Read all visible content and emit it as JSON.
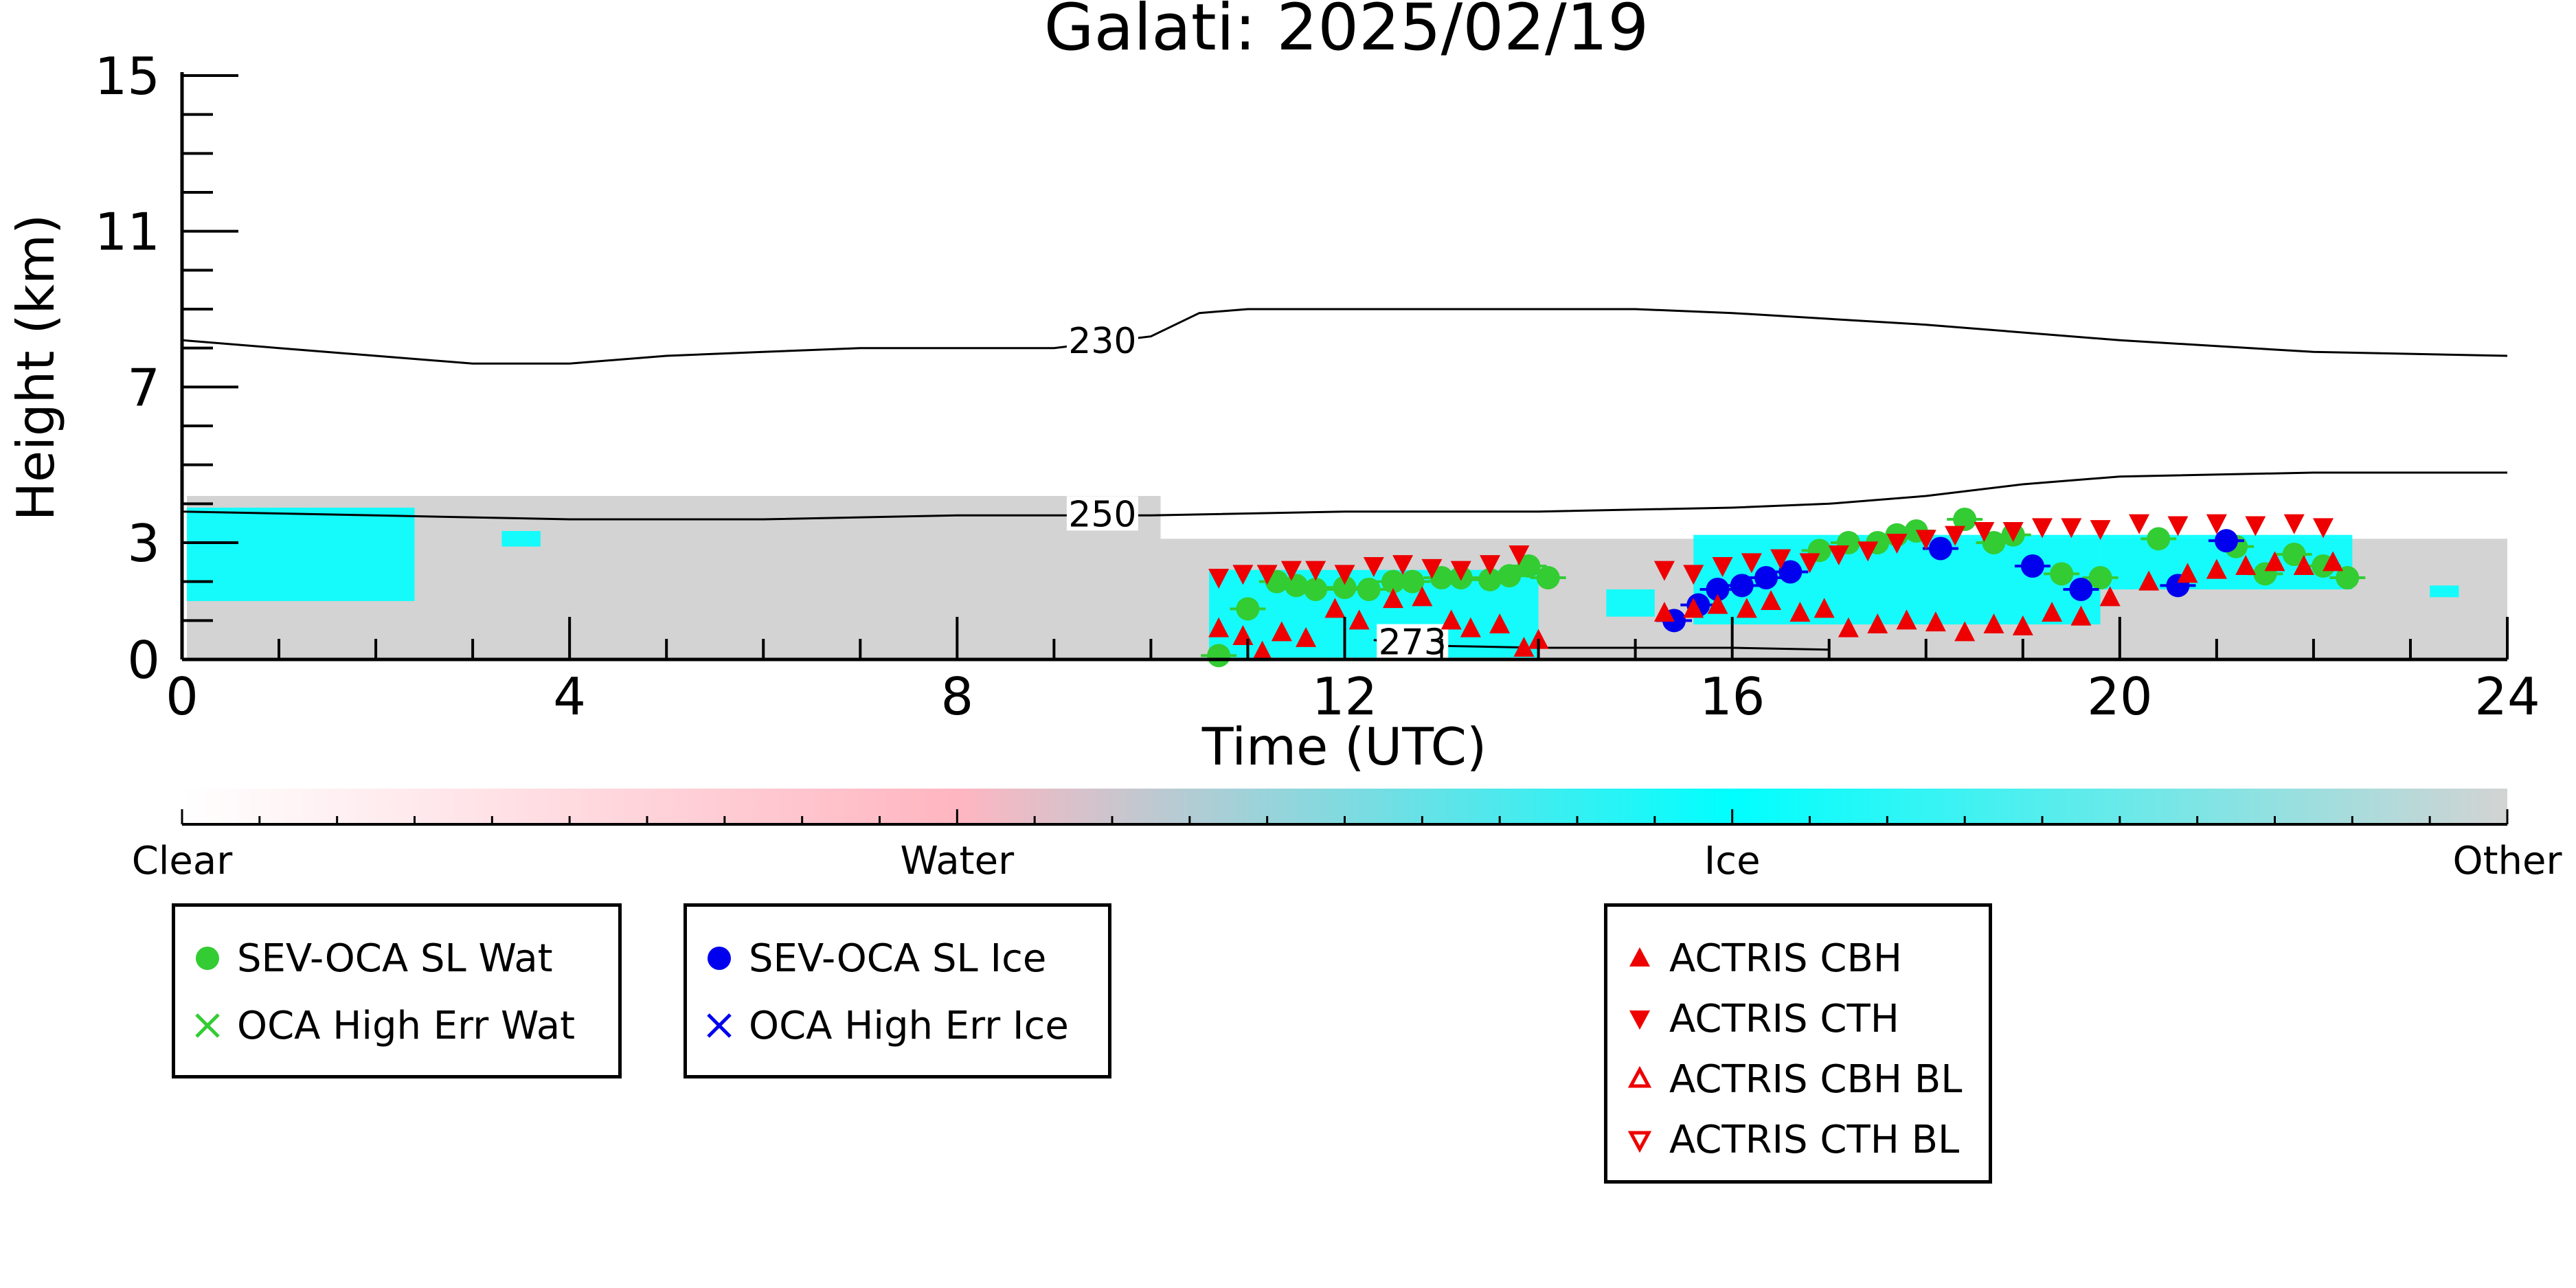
{
  "chart_data": {
    "type": "scatter",
    "title": "Galati: 2025/02/19",
    "xlabel": "Time (UTC)",
    "ylabel": "Height (km)",
    "xlim": [
      0,
      24
    ],
    "ylim": [
      0,
      15
    ],
    "x_ticks": [
      "0",
      "4",
      "8",
      "12",
      "16",
      "20",
      "24"
    ],
    "y_ticks": [
      "0",
      "3",
      "7",
      "11",
      "15"
    ],
    "grid": false,
    "colors": {
      "clear": "#ffffff",
      "water": "#ffb6c1",
      "ice": "#00ffff",
      "other": "#d3d3d3",
      "sev_wat": "#33cc33",
      "sev_ice": "#0000ee",
      "actris": "#ee0000"
    },
    "colorbar": {
      "labels": [
        "Clear",
        "Water",
        "Ice",
        "Other"
      ]
    },
    "background_cloud": {
      "other_regions": [
        {
          "t": [
            0.05,
            10.1
          ],
          "base_km": 0.0,
          "top_km": 4.2
        },
        {
          "t": [
            10.1,
            24.0
          ],
          "base_km": 0.0,
          "top_km": 3.1
        }
      ],
      "ice_regions": [
        {
          "t": [
            0.05,
            2.4
          ],
          "base_km": 1.5,
          "top_km": 3.9
        },
        {
          "t": [
            3.3,
            3.7
          ],
          "base_km": 2.9,
          "top_km": 3.3
        },
        {
          "t": [
            10.6,
            14.0
          ],
          "base_km": 0.05,
          "top_km": 2.3
        },
        {
          "t": [
            14.7,
            15.2
          ],
          "base_km": 1.1,
          "top_km": 1.8
        },
        {
          "t": [
            15.6,
            19.8
          ],
          "base_km": 0.9,
          "top_km": 3.2
        },
        {
          "t": [
            19.8,
            22.4
          ],
          "base_km": 1.8,
          "top_km": 3.2
        },
        {
          "t": [
            23.2,
            23.5
          ],
          "base_km": 1.6,
          "top_km": 1.9
        }
      ]
    },
    "contours": [
      {
        "label": "230",
        "points": [
          [
            0,
            8.2
          ],
          [
            1,
            8.0
          ],
          [
            2,
            7.8
          ],
          [
            3,
            7.6
          ],
          [
            4,
            7.6
          ],
          [
            5,
            7.8
          ],
          [
            6,
            7.9
          ],
          [
            7,
            8.0
          ],
          [
            8,
            8.0
          ],
          [
            9,
            8.0
          ],
          [
            10,
            8.3
          ],
          [
            10.5,
            8.9
          ],
          [
            11,
            9.0
          ],
          [
            13,
            9.0
          ],
          [
            15,
            9.0
          ],
          [
            16,
            8.9
          ],
          [
            18,
            8.6
          ],
          [
            20,
            8.2
          ],
          [
            22,
            7.9
          ],
          [
            24,
            7.8
          ]
        ],
        "label_x": 9.5
      },
      {
        "label": "250",
        "points": [
          [
            0,
            3.8
          ],
          [
            2,
            3.7
          ],
          [
            4,
            3.6
          ],
          [
            6,
            3.6
          ],
          [
            8,
            3.7
          ],
          [
            10,
            3.7
          ],
          [
            12,
            3.8
          ],
          [
            14,
            3.8
          ],
          [
            16,
            3.9
          ],
          [
            17,
            4.0
          ],
          [
            18,
            4.2
          ],
          [
            19,
            4.5
          ],
          [
            20,
            4.7
          ],
          [
            22,
            4.8
          ],
          [
            24,
            4.8
          ]
        ],
        "label_x": 9.5
      },
      {
        "label": "273",
        "points": [
          [
            12.3,
            0.5
          ],
          [
            13,
            0.35
          ],
          [
            14,
            0.3
          ],
          [
            15,
            0.3
          ],
          [
            16,
            0.3
          ],
          [
            17,
            0.25
          ]
        ],
        "label_x": 12.7
      }
    ],
    "series": [
      {
        "name": "SEV-OCA SL Wat",
        "marker": "circle",
        "points": [
          [
            10.7,
            0.1
          ],
          [
            11.0,
            1.3
          ],
          [
            11.3,
            2.0
          ],
          [
            11.5,
            1.9
          ],
          [
            11.7,
            1.8
          ],
          [
            12.0,
            1.85
          ],
          [
            12.25,
            1.8
          ],
          [
            12.5,
            2.0
          ],
          [
            12.7,
            2.0
          ],
          [
            13.0,
            2.1
          ],
          [
            13.2,
            2.1
          ],
          [
            13.5,
            2.05
          ],
          [
            13.7,
            2.15
          ],
          [
            13.9,
            2.4
          ],
          [
            14.1,
            2.1
          ],
          [
            16.9,
            2.8
          ],
          [
            17.2,
            3.0
          ],
          [
            17.5,
            3.0
          ],
          [
            17.7,
            3.2
          ],
          [
            17.9,
            3.3
          ],
          [
            18.4,
            3.6
          ],
          [
            18.7,
            3.0
          ],
          [
            18.9,
            3.2
          ],
          [
            19.4,
            2.2
          ],
          [
            19.8,
            2.1
          ],
          [
            20.4,
            3.1
          ],
          [
            21.2,
            2.9
          ],
          [
            21.5,
            2.2
          ],
          [
            21.8,
            2.7
          ],
          [
            22.1,
            2.4
          ],
          [
            22.35,
            2.1
          ]
        ]
      },
      {
        "name": "OCA High Err Wat",
        "marker": "x",
        "points": []
      },
      {
        "name": "SEV-OCA SL Ice",
        "marker": "circle",
        "points": [
          [
            15.4,
            1.0
          ],
          [
            15.65,
            1.4
          ],
          [
            15.85,
            1.8
          ],
          [
            16.1,
            1.9
          ],
          [
            16.35,
            2.1
          ],
          [
            16.6,
            2.25
          ],
          [
            18.15,
            2.85
          ],
          [
            19.1,
            2.4
          ],
          [
            19.6,
            1.8
          ],
          [
            20.6,
            1.9
          ],
          [
            21.1,
            3.05
          ]
        ]
      },
      {
        "name": "OCA High Err Ice",
        "marker": "x",
        "points": []
      },
      {
        "name": "ACTRIS CBH",
        "marker": "triangle-up",
        "points": [
          [
            10.7,
            0.8
          ],
          [
            10.95,
            0.6
          ],
          [
            11.15,
            0.2
          ],
          [
            11.35,
            0.7
          ],
          [
            11.6,
            0.55
          ],
          [
            11.9,
            1.3
          ],
          [
            12.15,
            1.0
          ],
          [
            12.5,
            1.55
          ],
          [
            12.8,
            1.6
          ],
          [
            13.1,
            1.0
          ],
          [
            13.3,
            0.8
          ],
          [
            13.6,
            0.9
          ],
          [
            13.85,
            0.3
          ],
          [
            14.0,
            0.5
          ],
          [
            15.3,
            1.2
          ],
          [
            15.6,
            1.3
          ],
          [
            15.85,
            1.4
          ],
          [
            16.15,
            1.3
          ],
          [
            16.4,
            1.5
          ],
          [
            16.7,
            1.2
          ],
          [
            16.95,
            1.3
          ],
          [
            17.2,
            0.8
          ],
          [
            17.5,
            0.9
          ],
          [
            17.8,
            1.0
          ],
          [
            18.1,
            0.95
          ],
          [
            18.4,
            0.7
          ],
          [
            18.7,
            0.9
          ],
          [
            19.0,
            0.85
          ],
          [
            19.3,
            1.2
          ],
          [
            19.6,
            1.1
          ],
          [
            19.9,
            1.6
          ],
          [
            20.3,
            2.0
          ],
          [
            20.7,
            2.2
          ],
          [
            21.0,
            2.3
          ],
          [
            21.3,
            2.4
          ],
          [
            21.6,
            2.5
          ],
          [
            21.9,
            2.4
          ],
          [
            22.2,
            2.5
          ]
        ]
      },
      {
        "name": "ACTRIS CTH",
        "marker": "triangle-down",
        "points": [
          [
            10.7,
            2.1
          ],
          [
            10.95,
            2.2
          ],
          [
            11.2,
            2.2
          ],
          [
            11.45,
            2.3
          ],
          [
            11.7,
            2.3
          ],
          [
            12.0,
            2.2
          ],
          [
            12.3,
            2.4
          ],
          [
            12.6,
            2.45
          ],
          [
            12.9,
            2.35
          ],
          [
            13.2,
            2.3
          ],
          [
            13.5,
            2.45
          ],
          [
            13.8,
            2.7
          ],
          [
            15.3,
            2.3
          ],
          [
            15.6,
            2.2
          ],
          [
            15.9,
            2.4
          ],
          [
            16.2,
            2.5
          ],
          [
            16.5,
            2.6
          ],
          [
            16.8,
            2.5
          ],
          [
            17.1,
            2.7
          ],
          [
            17.4,
            2.8
          ],
          [
            17.7,
            3.0
          ],
          [
            18.0,
            3.1
          ],
          [
            18.3,
            3.2
          ],
          [
            18.6,
            3.3
          ],
          [
            18.9,
            3.3
          ],
          [
            19.2,
            3.4
          ],
          [
            19.5,
            3.4
          ],
          [
            19.8,
            3.35
          ],
          [
            20.2,
            3.5
          ],
          [
            20.6,
            3.45
          ],
          [
            21.0,
            3.5
          ],
          [
            21.4,
            3.45
          ],
          [
            21.8,
            3.5
          ],
          [
            22.1,
            3.4
          ]
        ]
      },
      {
        "name": "ACTRIS CBH BL",
        "marker": "triangle-up-open",
        "points": []
      },
      {
        "name": "ACTRIS CTH BL",
        "marker": "triangle-down-open",
        "points": []
      }
    ],
    "legend_groups": [
      [
        "SEV-OCA SL Wat",
        "OCA High Err Wat"
      ],
      [
        "SEV-OCA SL Ice",
        "OCA High Err Ice"
      ],
      [
        "ACTRIS CBH",
        "ACTRIS CTH",
        "ACTRIS CBH BL",
        "ACTRIS CTH BL"
      ]
    ]
  }
}
